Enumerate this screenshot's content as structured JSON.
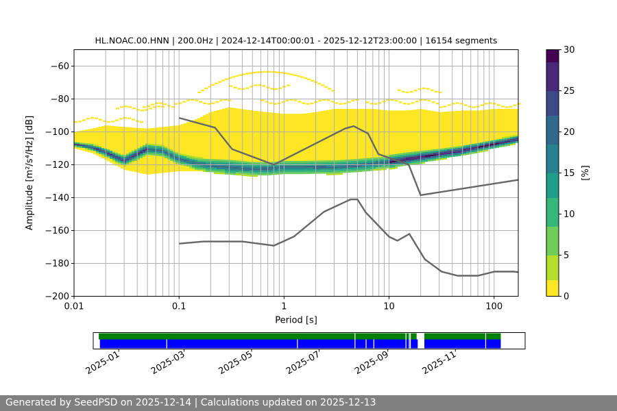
{
  "footer": {
    "text": "Generated by SeedPSD on 2025-12-14 | Calculations updated on 2025-12-13"
  },
  "colors": {
    "colormap": [
      "#fde725",
      "#b5de2b",
      "#6ece58",
      "#35b779",
      "#1f9e89",
      "#26828e",
      "#31688e",
      "#3e4989",
      "#482878",
      "#440154"
    ],
    "model_line": "#666666",
    "grid": "#b0b0b0",
    "availability_green": "#008000",
    "availability_blue": "#0000ff"
  },
  "chart_data": [
    {
      "type": "heatmap",
      "title": "HL.NOAC.00.HNN | 200.0Hz | 2024-12-14T00:00:01 - 2025-12-12T23:00:00 | 16154 segments",
      "xlabel": "Period [s]",
      "ylabel": "Amplitude [m²/s⁴/Hz] [dB]",
      "x_scale": "log",
      "xlim": [
        0.01,
        170
      ],
      "ylim": [
        -200,
        -50
      ],
      "x_ticks": [
        {
          "value": 0.01,
          "label": "0.01"
        },
        {
          "value": 0.1,
          "label": "0.1"
        },
        {
          "value": 1,
          "label": "1"
        },
        {
          "value": 10,
          "label": "10"
        },
        {
          "value": 100,
          "label": "100"
        }
      ],
      "y_ticks": [
        -60,
        -80,
        -100,
        -120,
        -140,
        -160,
        -180,
        -200
      ],
      "grid": true,
      "colorbar": {
        "label": "[%]",
        "range": [
          0,
          30
        ],
        "ticks": [
          0,
          5,
          10,
          15,
          20,
          25,
          30
        ]
      },
      "psd_envelope": {
        "period": [
          0.01,
          0.015,
          0.02,
          0.03,
          0.05,
          0.07,
          0.1,
          0.15,
          0.2,
          0.3,
          0.5,
          0.7,
          1,
          1.5,
          2,
          3,
          5,
          7,
          10,
          15,
          20,
          30,
          50,
          70,
          100,
          170
        ],
        "upper_db": [
          -100,
          -98,
          -96,
          -97,
          -98,
          -97,
          -96,
          -92,
          -88,
          -85,
          -87,
          -88,
          -89,
          -89,
          -88,
          -86,
          -86,
          -86,
          -87,
          -87,
          -86,
          -88,
          -87,
          -87,
          -86,
          -86
        ],
        "lower_db": [
          -110,
          -113,
          -117,
          -123,
          -126,
          -125,
          -124,
          -124,
          -124,
          -124,
          -124,
          -124,
          -124,
          -124,
          -124,
          -123,
          -122,
          -121,
          -120,
          -118,
          -116,
          -114,
          -112,
          -110,
          -108,
          -105
        ],
        "mode_db": [
          -107,
          -109,
          -112,
          -117,
          -110,
          -111,
          -116,
          -119,
          -120,
          -121,
          -122,
          -122,
          -121,
          -121,
          -121,
          -121,
          -120,
          -119,
          -118,
          -116,
          -115,
          -113,
          -111,
          -109,
          -107,
          -104
        ],
        "sparse_outliers": [
          {
            "period_range": [
              0.01,
              0.045
            ],
            "db": -91
          },
          {
            "period_range": [
              0.025,
              0.07
            ],
            "db": -84
          },
          {
            "period_range": [
              0.045,
              0.09
            ],
            "db": -82
          },
          {
            "period_range": [
              0.09,
              0.3
            ],
            "db": -80
          },
          {
            "period_range": [
              0.3,
              1.1
            ],
            "db": -71
          },
          {
            "period_range": [
              0.6,
              5
            ],
            "db": -80
          },
          {
            "period_range": [
              6,
              30
            ],
            "db": -80
          },
          {
            "period_range": [
              12,
              30
            ],
            "db": -73
          },
          {
            "period_range": [
              30,
              170
            ],
            "db": -82
          }
        ],
        "peak": {
          "period_range": [
            0.15,
            3
          ],
          "db": -63
        }
      },
      "noise_models": [
        {
          "period": [
            0.1,
            0.22,
            0.32,
            0.8,
            3.8,
            4.6,
            6.3,
            7.9,
            15.4,
            20,
            354.8
          ],
          "db": [
            -91.5,
            -97.4,
            -110.5,
            -120,
            -98,
            -96.5,
            -101,
            -113.5,
            -120,
            -138.5,
            -126
          ]
        },
        {
          "period": [
            0.1,
            0.17,
            0.4,
            0.8,
            1.24,
            2.4,
            4.3,
            5,
            6,
            10,
            12,
            15.6,
            21.9,
            31.6,
            45,
            70,
            101,
            154,
            328
          ],
          "db": [
            -168,
            -166.7,
            -166.7,
            -169.2,
            -163.7,
            -148.6,
            -141.1,
            -141.1,
            -149,
            -163.8,
            -166.2,
            -162.1,
            -177.5,
            -185,
            -187.5,
            -187.5,
            -185,
            -185,
            -187.5
          ]
        }
      ]
    },
    {
      "type": "timeline",
      "x_ticks": [
        "2025-01",
        "2025-03",
        "2025-05",
        "2025-07",
        "2025-09",
        "2025-11"
      ],
      "xlim": [
        "2024-12-09",
        "2026-01-03"
      ],
      "series": [
        {
          "color": "green",
          "segments": [
            [
              "2024-12-14",
              "2025-09-27"
            ],
            [
              "2025-10-04",
              "2025-12-12"
            ]
          ],
          "gaps": [
            "2025-08-02",
            "2025-09-17",
            "2025-09-20",
            "2025-09-21",
            "2025-11-28"
          ]
        },
        {
          "color": "blue",
          "segments": [
            [
              "2024-12-15",
              "2025-09-28"
            ],
            [
              "2025-10-04",
              "2025-12-12"
            ]
          ],
          "gaps": [
            "2025-02-13",
            "2025-06-11",
            "2025-08-02",
            "2025-08-12",
            "2025-08-19",
            "2025-09-17",
            "2025-09-20",
            "2025-09-21",
            "2025-11-28"
          ]
        }
      ]
    }
  ]
}
